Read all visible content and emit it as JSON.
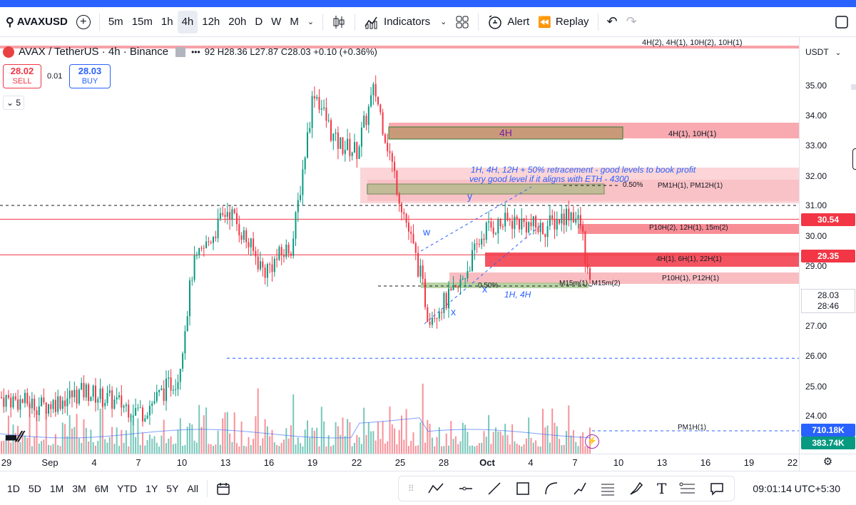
{
  "toolbar": {
    "symbol": "AVAXUSD",
    "intervals": [
      "5m",
      "15m",
      "1h",
      "4h",
      "12h",
      "20h",
      "D",
      "W",
      "M"
    ],
    "active_interval": "4h",
    "indicators_label": "Indicators",
    "alert_label": "Alert",
    "replay_label": "Replay"
  },
  "legend": {
    "title": "AVAX / TetherUS · 4h · Binance",
    "ohlc": "92  H28.36  L27.87  C28.03  +0.10 (+0.36%)",
    "sell_price": "28.02",
    "sell_label": "SELL",
    "spread": "0.01",
    "buy_price": "28.03",
    "buy_label": "BUY",
    "collapse_count": "5"
  },
  "price_axis": {
    "currency": "USDT",
    "labels": [
      "35.00",
      "34.00",
      "33.00",
      "32.00",
      "31.00",
      "30.00",
      "29.00",
      "27.00",
      "26.00",
      "25.00",
      "24.00"
    ],
    "tag_30_54": "30.54",
    "tag_29_35": "29.35",
    "last_price": "28.03",
    "countdown": "28:46",
    "vol_tag_1": "710.18K",
    "vol_tag_2": "383.74K"
  },
  "time_axis": {
    "labels": [
      "29",
      "Sep",
      "4",
      "7",
      "10",
      "13",
      "16",
      "19",
      "22",
      "25",
      "28",
      "Oct",
      "4",
      "7",
      "10",
      "13",
      "16",
      "19",
      "22"
    ]
  },
  "annotations": {
    "top_zone": "4H(2), 4H(1), 10H(2), 10H(1)",
    "zone_4h": "4H",
    "zone_4h_right": "4H(1), 10H(1)",
    "note_line1": "1H, 4H, 12H + 50% retracement - good levels to book profit",
    "note_line2": "very good level if it aligns with ETH - 4300",
    "fib_upper": "0.50%",
    "pm_zone": "PM1H(1), PM12H(1)",
    "p10h_zone": "P10H(2), 12H(1), 15m(2)",
    "h4_zone": "4H(1), 6H(1), 22H(1)",
    "p10h_p12h": "P10H(1), P12H(1)",
    "m15": "M15m(1), M15m(2)",
    "fib_lower": "0.50%",
    "h1h4": "1H, 4H",
    "wave_w": "w",
    "wave_x": "x",
    "wave_y": "y",
    "wave_x2": "x",
    "pm1h": "PM1H(1)"
  },
  "bottombar": {
    "ranges": [
      "1D",
      "5D",
      "1M",
      "3M",
      "6M",
      "YTD",
      "1Y",
      "5Y",
      "All"
    ],
    "clock": "09:01:14 UTC+5:30"
  },
  "colors": {
    "accent": "#2962ff",
    "up": "#089981",
    "down": "#f23645",
    "zone_red": "#f7a1a7",
    "zone_green": "#8fc27a"
  }
}
